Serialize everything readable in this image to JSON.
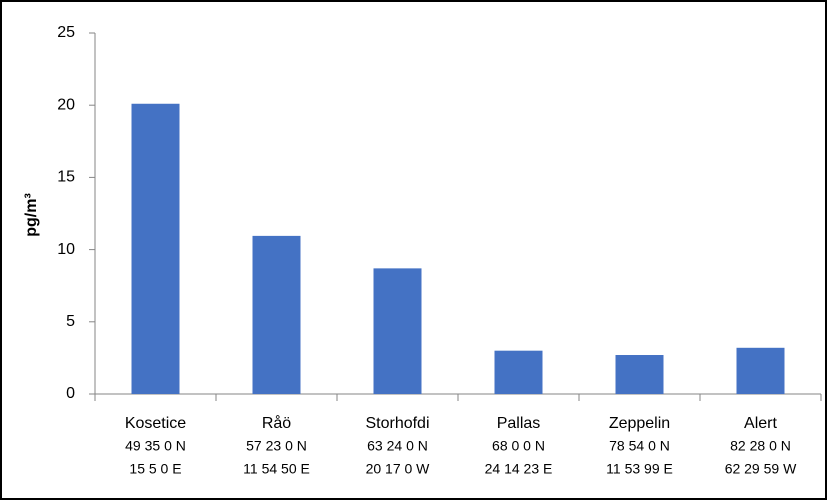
{
  "chart_data": {
    "type": "bar",
    "y_label": "pg/m³",
    "categories": [
      "Kosetice",
      "Råö",
      "Storhofdi",
      "Pallas",
      "Zeppelin",
      "Alert"
    ],
    "coordinates": [
      [
        "49 35 0 N",
        "15 5 0 E"
      ],
      [
        "57 23 0 N",
        "11 54 50 E"
      ],
      [
        "63 24 0 N",
        "20 17 0 W"
      ],
      [
        "68 0 0 N",
        "24 14 23 E"
      ],
      [
        "78 54 0 N",
        "11 53 99 E"
      ],
      [
        "82 28 0 N",
        "62 29 59 W"
      ]
    ],
    "values": [
      20.1,
      10.95,
      8.7,
      3.0,
      2.7,
      3.2
    ],
    "color": "#4472c4",
    "ylim": [
      0,
      25
    ],
    "yticks": [
      0,
      5,
      10,
      15,
      20,
      25
    ],
    "grid": false
  }
}
